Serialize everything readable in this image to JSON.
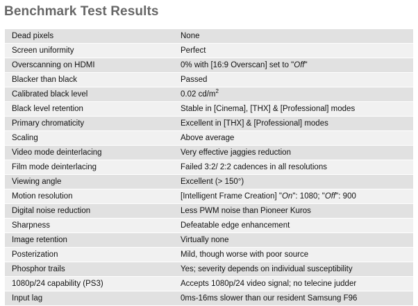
{
  "title": "Benchmark Test Results",
  "rows": [
    {
      "label": "Dead pixels",
      "value": [
        {
          "t": "None"
        }
      ]
    },
    {
      "label": "Screen uniformity",
      "value": [
        {
          "t": "Perfect"
        }
      ]
    },
    {
      "label": "Overscanning on HDMI",
      "value": [
        {
          "t": "0% with [16:9 Overscan] set to \""
        },
        {
          "t": "Off",
          "i": true
        },
        {
          "t": "\""
        }
      ]
    },
    {
      "label": "Blacker than black",
      "value": [
        {
          "t": "Passed"
        }
      ]
    },
    {
      "label": "Calibrated black level",
      "value": [
        {
          "t": "0.02 cd/m"
        },
        {
          "t": "2",
          "sup": true
        }
      ]
    },
    {
      "label": "Black level retention",
      "value": [
        {
          "t": "Stable in [Cinema], [THX] & [Professional] modes"
        }
      ]
    },
    {
      "label": "Primary chromaticity",
      "value": [
        {
          "t": "Excellent in [THX] & [Professional] modes"
        }
      ]
    },
    {
      "label": "Scaling",
      "value": [
        {
          "t": "Above average"
        }
      ]
    },
    {
      "label": "Video mode deinterlacing",
      "value": [
        {
          "t": "Very effective jaggies reduction"
        }
      ]
    },
    {
      "label": "Film mode deinterlacing",
      "value": [
        {
          "t": "Failed 3:2/ 2:2 cadences in all resolutions"
        }
      ]
    },
    {
      "label": "Viewing angle",
      "value": [
        {
          "t": "Excellent (> 150°)"
        }
      ]
    },
    {
      "label": "Motion resolution",
      "value": [
        {
          "t": "[Intelligent Frame Creation] \""
        },
        {
          "t": "On",
          "i": true
        },
        {
          "t": "\": 1080; \""
        },
        {
          "t": "Off",
          "i": true
        },
        {
          "t": "\": 900"
        }
      ]
    },
    {
      "label": "Digital noise reduction",
      "value": [
        {
          "t": "Less PWM noise than Pioneer Kuros"
        }
      ]
    },
    {
      "label": "Sharpness",
      "value": [
        {
          "t": "Defeatable edge enhancement"
        }
      ]
    },
    {
      "label": "Image retention",
      "value": [
        {
          "t": "Virtually none"
        }
      ]
    },
    {
      "label": "Posterization",
      "value": [
        {
          "t": "Mild, though worse with poor source"
        }
      ]
    },
    {
      "label": "Phosphor trails",
      "value": [
        {
          "t": "Yes; severity depends on individual susceptibility"
        }
      ]
    },
    {
      "label": "1080p/24 capability (PS3)",
      "value": [
        {
          "t": "Accepts 1080p/24 video signal; no telecine judder"
        }
      ]
    },
    {
      "label": "Input lag",
      "value": [
        {
          "t": "0ms-16ms slower than our resident Samsung F96"
        }
      ]
    }
  ],
  "colors": {
    "title": "#666666",
    "row_shade": "#e1e1e1",
    "row_plain": "#f1f1f1"
  }
}
